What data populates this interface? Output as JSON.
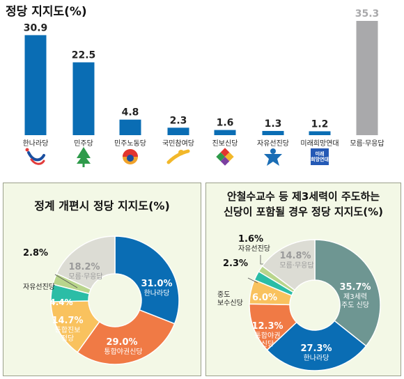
{
  "chart_data": [
    {
      "type": "bar",
      "title": "정당 지지도(%)",
      "categories": [
        "한나라당",
        "민주당",
        "민주노동당",
        "국민참여당",
        "진보신당",
        "자유선진당",
        "미래희망연대",
        "모름·무응답"
      ],
      "values": [
        30.9,
        22.5,
        4.8,
        2.3,
        1.6,
        1.3,
        1.2,
        35.3
      ],
      "colors": [
        "#0a6db4",
        "#0a6db4",
        "#0a6db4",
        "#0a6db4",
        "#0a6db4",
        "#0a6db4",
        "#0a6db4",
        "#a9a9ab"
      ],
      "ylim": [
        0,
        36
      ],
      "logos": [
        "hannara-logo-icon",
        "minju-tree-logo-icon",
        "minjunodong-logo-icon",
        "gukminchamyeo-logo-icon",
        "jinbo-logo-icon",
        "jayuseonjin-logo-icon",
        "miraehuimang-logo-icon"
      ],
      "logo_text": "미래\n희망연대"
    },
    {
      "type": "pie",
      "title": "정계 개편시 정당 지지도(%)",
      "slices": [
        {
          "label": "한나라당",
          "value": 31.0,
          "color": "#0a6db4",
          "value_label": "31.0%"
        },
        {
          "label": "통합야권신당",
          "value": 29.0,
          "color": "#f07a45",
          "value_label": "29.0%"
        },
        {
          "label": "통합진보\n정당",
          "value": 14.7,
          "color": "#f9c25e",
          "value_label": "14.7%"
        },
        {
          "label": "중도\n보수신당",
          "value": 4.4,
          "color": "#2bbda6",
          "value_label": "4.4%"
        },
        {
          "label": "자유선진당",
          "value": 2.8,
          "color": "#b9d58c",
          "value_label": "2.8%"
        },
        {
          "label": "모름·무응답",
          "value": 18.2,
          "color": "#dcdcd4",
          "value_label": "18.2%"
        }
      ]
    },
    {
      "type": "pie",
      "title": "안철수교수 등 제3세력이 주도하는\n신당이 포함될 경우 정당 지지도(%)",
      "slices": [
        {
          "label": "제3세력\n주도 신당",
          "value": 35.7,
          "color": "#6e9692",
          "value_label": "35.7%"
        },
        {
          "label": "한나라당",
          "value": 27.3,
          "color": "#0a6db4",
          "value_label": "27.3%"
        },
        {
          "label": "통합야권\n신당",
          "value": 12.3,
          "color": "#f07a45",
          "value_label": "12.3%"
        },
        {
          "label": "통합진보\n정당",
          "value": 6.0,
          "color": "#f9c25e",
          "value_label": "6.0%"
        },
        {
          "label": "중도\n보수신당",
          "value": 2.3,
          "color": "#2bbda6",
          "value_label": "2.3%"
        },
        {
          "label": "자유선진당",
          "value": 1.6,
          "color": "#b9d58c",
          "value_label": "1.6%"
        },
        {
          "label": "모름·무응답",
          "value": 14.8,
          "color": "#dcdcd4",
          "value_label": "14.8%"
        }
      ]
    }
  ]
}
